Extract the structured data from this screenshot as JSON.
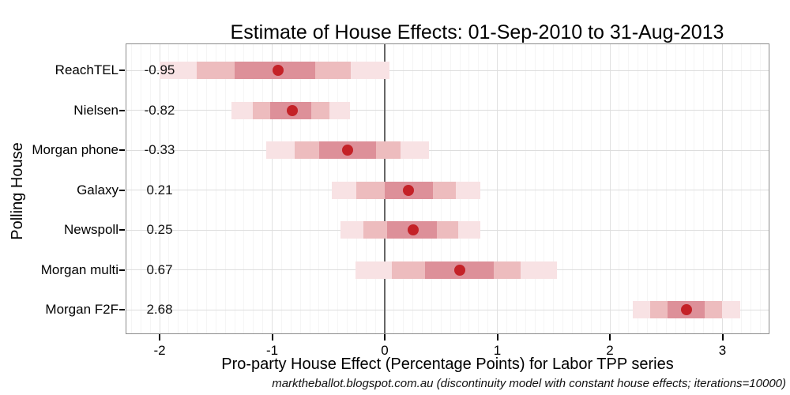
{
  "chart_data": {
    "type": "interval-dot",
    "title": "Estimate of House Effects: 01-Sep-2010 to 31-Aug-2013",
    "xlabel": "Pro-party House Effect (Percentage Points) for Labor TPP series",
    "ylabel": "Polling House",
    "footer": "marktheballot.blogspot.com.au (discontinuity model with constant house effects; iterations=10000)",
    "x_ticks": [
      -2,
      -1,
      0,
      1,
      2,
      3
    ],
    "xlim": [
      -2.3,
      3.42
    ],
    "zero_reference_line": 0,
    "legend": "none",
    "grid": "on",
    "categories": [
      "ReachTEL",
      "Nielsen",
      "Morgan phone",
      "Galaxy",
      "Newspoll",
      "Morgan multi",
      "Morgan F2F"
    ],
    "rows": [
      {
        "label": "ReachTEL",
        "value_label": "-0.95",
        "dot": -0.95,
        "inner": [
          -1.33,
          -0.62
        ],
        "middle": [
          -1.67,
          -0.3
        ],
        "outer": [
          -2.0,
          0.04
        ]
      },
      {
        "label": "Nielsen",
        "value_label": "-0.82",
        "dot": -0.82,
        "inner": [
          -1.02,
          -0.65
        ],
        "middle": [
          -1.17,
          -0.49
        ],
        "outer": [
          -1.36,
          -0.31
        ]
      },
      {
        "label": "Morgan phone",
        "value_label": "-0.33",
        "dot": -0.33,
        "inner": [
          -0.58,
          -0.08
        ],
        "middle": [
          -0.8,
          0.14
        ],
        "outer": [
          -1.05,
          0.39
        ]
      },
      {
        "label": "Galaxy",
        "value_label": "0.21",
        "dot": 0.21,
        "inner": [
          0.0,
          0.43
        ],
        "middle": [
          -0.25,
          0.63
        ],
        "outer": [
          -0.47,
          0.85
        ]
      },
      {
        "label": "Newspoll",
        "value_label": "0.25",
        "dot": 0.25,
        "inner": [
          0.02,
          0.46
        ],
        "middle": [
          -0.19,
          0.65
        ],
        "outer": [
          -0.39,
          0.85
        ]
      },
      {
        "label": "Morgan multi",
        "value_label": "0.67",
        "dot": 0.67,
        "inner": [
          0.36,
          0.97
        ],
        "middle": [
          0.06,
          1.21
        ],
        "outer": [
          -0.26,
          1.53
        ]
      },
      {
        "label": "Morgan F2F",
        "value_label": "2.68",
        "dot": 2.68,
        "inner": [
          2.51,
          2.84
        ],
        "middle": [
          2.36,
          3.0
        ],
        "outer": [
          2.2,
          3.16
        ]
      }
    ],
    "colors": {
      "dot": "#C42127",
      "inner_band": "#DD9099",
      "middle_band": "#EDBCBE",
      "outer_band": "#F8E2E4",
      "zero_line": "#666666",
      "grid_major": "#E1E1E1",
      "grid_fine": "#F5F5F5",
      "row_line": "#DDDDDD",
      "panel_border": "#8C8C8C",
      "text": "#000000"
    }
  }
}
